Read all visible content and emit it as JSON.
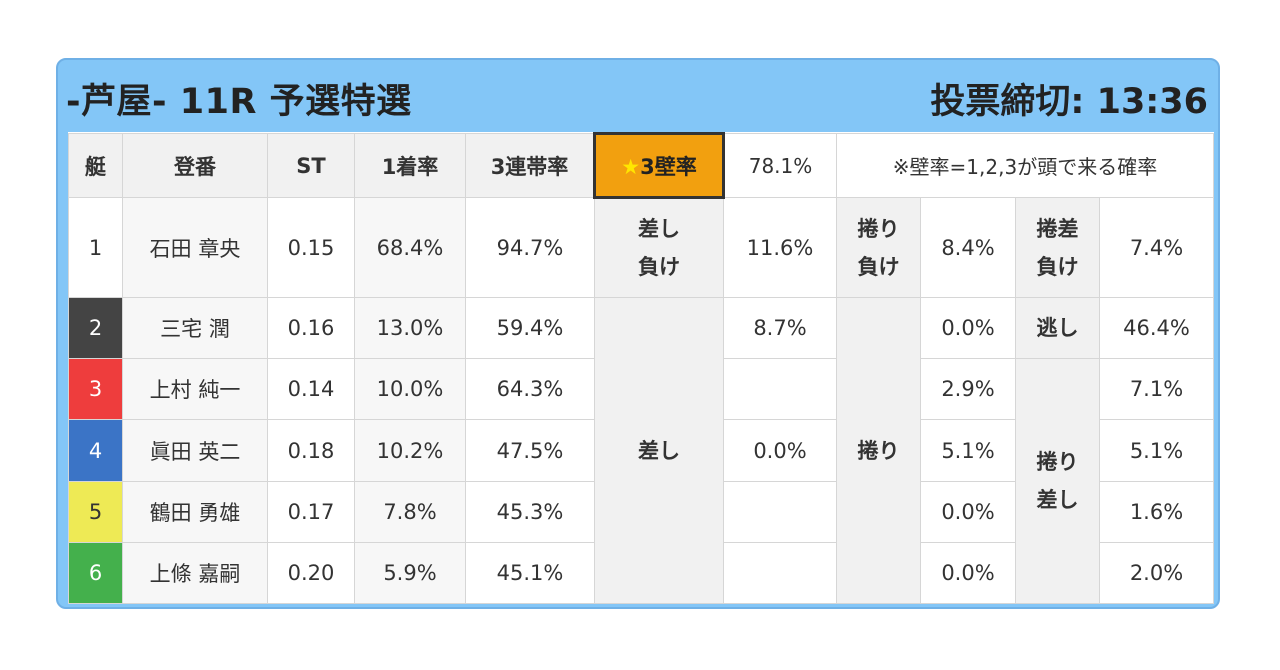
{
  "header": {
    "title": "-芦屋- 11R 予選特選",
    "deadline": "投票締切: 13:36"
  },
  "columns": {
    "lane": "艇",
    "reg": "登番",
    "st": "ST",
    "win1": "1着率",
    "top3": "3連帯率",
    "wall_star": "★",
    "wall_label": "3壁率",
    "wall_value": "78.1%",
    "wall_note": "※壁率=1,2,3が頭で来る確率"
  },
  "racers": [
    {
      "lane": "1",
      "name": "石田 章央",
      "st": "0.15",
      "win1": "68.4%",
      "top3": "94.7%"
    },
    {
      "lane": "2",
      "name": "三宅 潤",
      "st": "0.16",
      "win1": "13.0%",
      "top3": "59.4%"
    },
    {
      "lane": "3",
      "name": "上村 純一",
      "st": "0.14",
      "win1": "10.0%",
      "top3": "64.3%"
    },
    {
      "lane": "4",
      "name": "眞田 英二",
      "st": "0.18",
      "win1": "10.2%",
      "top3": "47.5%"
    },
    {
      "lane": "5",
      "name": "鶴田 勇雄",
      "st": "0.17",
      "win1": "7.8%",
      "top3": "45.3%"
    },
    {
      "lane": "6",
      "name": "上條 嘉嗣",
      "st": "0.20",
      "win1": "5.9%",
      "top3": "45.1%"
    }
  ],
  "patterns": {
    "sashi_make_l1": "差し",
    "sashi_make_l2": "負け",
    "sashi_make_value": "11.6%",
    "makuri_make_l1": "捲り",
    "makuri_make_l2": "負け",
    "makuri_make_value": "8.4%",
    "makusashi_make_l1": "捲差",
    "makusashi_make_l2": "負け",
    "makusashi_make_value": "7.4%",
    "sashi_label": "差し",
    "sashi_values": [
      "8.7%",
      "",
      "0.0%",
      "",
      ""
    ],
    "makuri_label": "捲り",
    "makuri_values": [
      "0.0%",
      "2.9%",
      "5.1%",
      "0.0%",
      "0.0%"
    ],
    "nige_label": "逃し",
    "nige_value": "46.4%",
    "makusashi_l1": "捲り",
    "makusashi_l2": "差し",
    "makusashi_values": [
      "7.1%",
      "5.1%",
      "1.6%",
      "2.0%"
    ]
  },
  "colors": {
    "header_bg": "#83c6f7",
    "star_bg": "#f2a00f",
    "lane2": "#444444",
    "lane3": "#ee3d3d",
    "lane4": "#3b74c6",
    "lane5": "#eeea55",
    "lane6": "#44b04c"
  }
}
